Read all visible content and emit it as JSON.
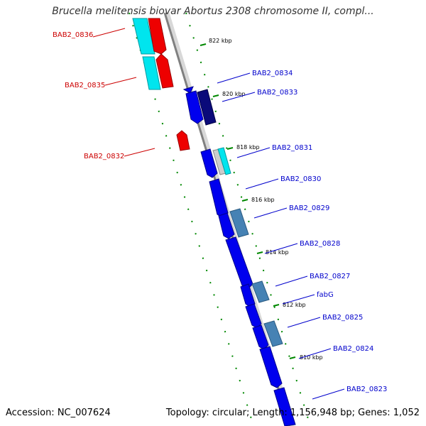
{
  "title": "Brucella melitensis biovar Abortus 2308 chromosome II, compl...",
  "footer": {
    "accession": "Accession: NC_007624",
    "topology": "Topology: circular; Length: 1,156,948 bp; Genes: 1,052"
  },
  "colors": {
    "forward_gene": "#0000ee",
    "forward_gene_dark": "#0a0a7a",
    "reverse_gene": "#ee0000",
    "cyan_gene": "#00e5ee",
    "steel_gene": "#4682b4",
    "backbone": "#888888",
    "tick": "#008800",
    "label_blue": "#0000cc",
    "label_red": "#cc0000"
  },
  "kbp_markers": [
    "822 kbp",
    "820 kbp",
    "818 kbp",
    "816 kbp",
    "814 kbp",
    "812 kbp",
    "810 kbp"
  ],
  "gene_labels": [
    {
      "id": "BAB2_0836",
      "side": "left"
    },
    {
      "id": "BAB2_0835",
      "side": "left"
    },
    {
      "id": "BAB2_0832",
      "side": "left"
    },
    {
      "id": "BAB2_0834",
      "side": "right"
    },
    {
      "id": "BAB2_0833",
      "side": "right"
    },
    {
      "id": "BAB2_0831",
      "side": "right"
    },
    {
      "id": "BAB2_0830",
      "side": "right"
    },
    {
      "id": "BAB2_0829",
      "side": "right"
    },
    {
      "id": "BAB2_0828",
      "side": "right"
    },
    {
      "id": "BAB2_0827",
      "side": "right"
    },
    {
      "id": "fabG",
      "side": "right"
    },
    {
      "id": "BAB2_0825",
      "side": "right"
    },
    {
      "id": "BAB2_0824",
      "side": "right"
    },
    {
      "id": "BAB2_0823",
      "side": "right"
    }
  ]
}
